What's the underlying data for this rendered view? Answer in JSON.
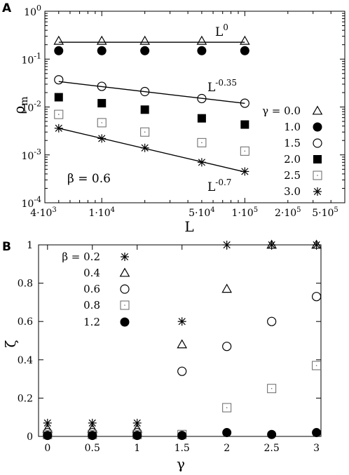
{
  "chart_data": [
    {
      "panel": "A",
      "type": "scatter",
      "xlabel": "L",
      "ylabel": "ρ_m",
      "x_scale": "log",
      "y_scale": "log",
      "xlim": [
        4000,
        500000
      ],
      "ylim": [
        0.0001,
        1
      ],
      "x_tick_values": [
        4000,
        10000,
        50000,
        100000,
        200000,
        500000
      ],
      "x_tick_labels": [
        {
          "base": "4·10",
          "exp": "3"
        },
        {
          "base": "1·10",
          "exp": "4"
        },
        {
          "base": "5·10",
          "exp": "4"
        },
        {
          "base": "1·10",
          "exp": "5"
        },
        {
          "base": "2·10",
          "exp": "5"
        },
        {
          "base": "5·10",
          "exp": "5"
        }
      ],
      "y_tick_values": [
        0.0001,
        0.001,
        0.01,
        0.1,
        1
      ],
      "y_tick_labels": [
        {
          "base": "10",
          "exp": "-4"
        },
        {
          "base": "10",
          "exp": "-3"
        },
        {
          "base": "10",
          "exp": "-2"
        },
        {
          "base": "10",
          "exp": "-1"
        },
        {
          "base": "10",
          "exp": "0"
        }
      ],
      "legend_title": "γ = ",
      "legend_position": "right",
      "series": [
        {
          "name": "0.0",
          "marker": "triangle-open",
          "x": [
            5000,
            10000,
            20000,
            50000,
            100000
          ],
          "y": [
            0.24,
            0.24,
            0.24,
            0.24,
            0.24
          ]
        },
        {
          "name": "1.0",
          "marker": "circle-filled",
          "x": [
            5000,
            10000,
            20000,
            50000,
            100000
          ],
          "y": [
            0.15,
            0.15,
            0.15,
            0.15,
            0.15
          ]
        },
        {
          "name": "1.5",
          "marker": "circle-open",
          "x": [
            5000,
            10000,
            20000,
            50000,
            100000
          ],
          "y": [
            0.037,
            0.027,
            0.021,
            0.015,
            0.012
          ]
        },
        {
          "name": "2.0",
          "marker": "square-filled",
          "x": [
            5000,
            10000,
            20000,
            50000,
            100000
          ],
          "y": [
            0.016,
            0.012,
            0.0088,
            0.0058,
            0.0043
          ]
        },
        {
          "name": "2.5",
          "marker": "square-open-dot",
          "x": [
            5000,
            10000,
            20000,
            50000,
            100000
          ],
          "y": [
            0.007,
            0.0047,
            0.003,
            0.0018,
            0.0012
          ]
        },
        {
          "name": "3.0",
          "marker": "star",
          "x": [
            5000,
            10000,
            20000,
            50000,
            100000
          ],
          "y": [
            0.0036,
            0.0022,
            0.0014,
            0.0007,
            0.00045
          ]
        }
      ],
      "fit_lines": [
        {
          "label_base": "L",
          "label_exp": "0",
          "x": [
            5000,
            100000
          ],
          "y": [
            0.225,
            0.225
          ]
        },
        {
          "label_base": "L",
          "label_exp": "-0.35",
          "x": [
            5000,
            100000
          ],
          "y": [
            0.034,
            0.0119
          ]
        },
        {
          "label_base": "L",
          "label_exp": "-0.7",
          "x": [
            5000,
            100000
          ],
          "y": [
            0.0036,
            0.00044
          ]
        }
      ],
      "annotation": "β = 0.6"
    },
    {
      "panel": "B",
      "type": "scatter",
      "xlabel": "γ",
      "ylabel": "ζ",
      "xlim": [
        -0.1,
        3.05
      ],
      "ylim": [
        0,
        1
      ],
      "x_ticks": [
        0,
        0.5,
        1,
        1.5,
        2,
        2.5,
        3
      ],
      "x_tick_labels": [
        "0",
        "0.5",
        "1",
        "1.5",
        "2",
        "2.5",
        "3"
      ],
      "y_ticks": [
        0,
        0.2,
        0.4,
        0.6,
        0.8,
        1
      ],
      "y_tick_labels": [
        "0",
        "0.2",
        "0.4",
        "0.6",
        "0.8",
        "1"
      ],
      "legend_title": "β = ",
      "legend_position": "top-left",
      "series": [
        {
          "name": "0.2",
          "marker": "star",
          "x": [
            0,
            0.5,
            1,
            1.5,
            2,
            2.5,
            3
          ],
          "y": [
            0.07,
            0.07,
            0.07,
            0.6,
            1.0,
            1.0,
            1.0
          ]
        },
        {
          "name": "0.4",
          "marker": "triangle-open",
          "x": [
            0,
            0.5,
            1,
            1.5,
            2,
            2.5,
            3
          ],
          "y": [
            0.04,
            0.04,
            0.04,
            0.48,
            0.77,
            1.0,
            1.0
          ]
        },
        {
          "name": "0.6",
          "marker": "circle-open",
          "x": [
            0,
            0.5,
            1,
            1.5,
            2,
            2.5,
            3
          ],
          "y": [
            0.02,
            0.02,
            0.02,
            0.34,
            0.47,
            0.6,
            0.73
          ]
        },
        {
          "name": "0.8",
          "marker": "square-open-dot",
          "x": [
            0,
            0.5,
            1,
            1.5,
            2,
            2.5,
            3
          ],
          "y": [
            0.01,
            0.01,
            0.01,
            0.01,
            0.15,
            0.25,
            0.37
          ]
        },
        {
          "name": "1.2",
          "marker": "circle-filled",
          "x": [
            0,
            0.5,
            1,
            1.5,
            2,
            2.5,
            3
          ],
          "y": [
            0.005,
            0.005,
            0.005,
            0.005,
            0.02,
            0.01,
            0.02
          ]
        }
      ]
    }
  ],
  "panel_labels": {
    "a": "A",
    "b": "B"
  }
}
